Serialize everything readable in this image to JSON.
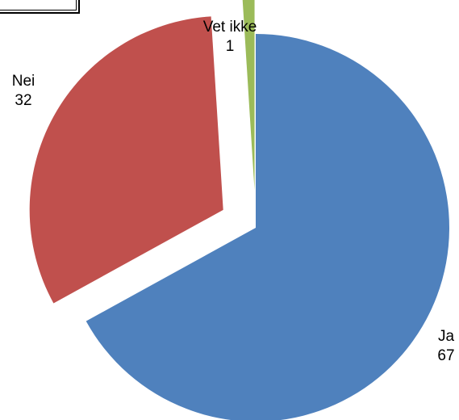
{
  "chart_data": {
    "type": "pie",
    "title": "",
    "slices": [
      {
        "label": "Ja",
        "value": 67,
        "color": "#4F81BD",
        "exploded": false
      },
      {
        "label": "Nei",
        "value": 32,
        "color": "#C0504D",
        "exploded": true
      },
      {
        "label": "Vet ikke",
        "value": 1,
        "color": "#9BBB59",
        "exploded": true
      }
    ],
    "legend": "none",
    "data_labels": "category and value"
  }
}
